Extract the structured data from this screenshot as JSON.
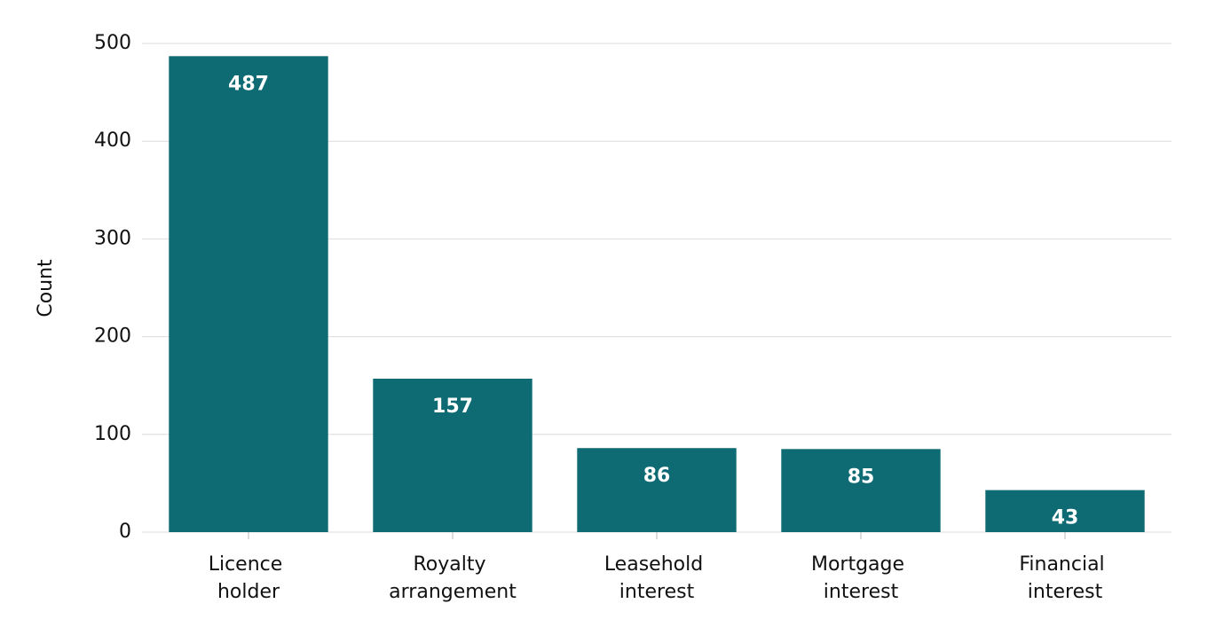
{
  "chart_data": {
    "type": "bar",
    "y_label": "Count",
    "categories": [
      "Licence holder",
      "Royalty arrangement",
      "Leasehold interest",
      "Mortgage interest",
      "Financial interest"
    ],
    "values": [
      487,
      157,
      86,
      85,
      43
    ],
    "color": "#0f6b73",
    "ylim": [
      0,
      500
    ],
    "yticks": [
      0,
      100,
      200,
      300,
      400,
      500
    ],
    "grid": true
  }
}
